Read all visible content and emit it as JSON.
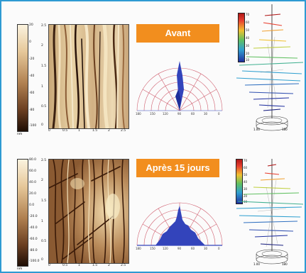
{
  "panels": [
    {
      "label": "Avant",
      "scale_ticks": [
        "20",
        "0",
        "-20",
        "-40",
        "-60",
        "-80",
        "-100"
      ],
      "scale_unit": "nm",
      "afm_x_ticks": [
        "0",
        "0.5",
        "1",
        "1.5",
        "2",
        "2.5"
      ],
      "afm_y_ticks": [
        "2.5",
        "2",
        "1.5",
        "1",
        "0.5",
        "0"
      ],
      "afm_axis_unit": "µm",
      "polar_angle_ticks": [
        "0",
        "30",
        "60",
        "90",
        "120",
        "150",
        "180"
      ],
      "plot_colorbar_ticks": [
        "70",
        "60",
        "50",
        "40",
        "30",
        "20",
        "10"
      ],
      "plot_base_labels": [
        "1.00",
        "180"
      ]
    },
    {
      "label": "Après 15 jours",
      "scale_ticks": [
        "80.0",
        "60.0",
        "40.0",
        "20.0",
        "0.0",
        "-20.0",
        "-40.0",
        "-60.0",
        "-80.0",
        "-100.0"
      ],
      "scale_unit": "nm",
      "afm_x_ticks": [
        "0",
        "0.5",
        "1",
        "1.5",
        "2",
        "2.5"
      ],
      "afm_y_ticks": [
        "2.5",
        "2",
        "1.5",
        "1",
        "0.5",
        "0"
      ],
      "afm_axis_unit": "µm",
      "polar_angle_ticks": [
        "0",
        "30",
        "60",
        "90",
        "120",
        "150",
        "180"
      ],
      "plot_colorbar_ticks": [
        "70",
        "60",
        "50",
        "40",
        "30",
        "20",
        "10"
      ],
      "plot_base_labels": [
        "1.00",
        "180"
      ]
    }
  ],
  "colors": {
    "frame_border": "#2e9ad2",
    "label_bg": "#f28e1e",
    "polar_fill": "#3344bb",
    "polar_grid": "#d06070"
  }
}
